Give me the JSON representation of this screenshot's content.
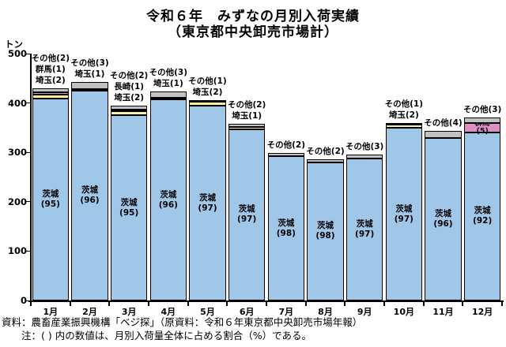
{
  "chart_data": {
    "type": "bar",
    "stacked": true,
    "title": "令和６年　みずなの月別入荷実績",
    "subtitle": "（東京都中央卸売市場計）",
    "ylabel_unit": "トン",
    "ylim": [
      0,
      500
    ],
    "yticks": [
      0,
      100,
      200,
      300,
      400,
      500
    ],
    "grid": "off",
    "legend": "none",
    "colors": {
      "茨城": "#A0C6E8",
      "埼玉": "#FFF0A0",
      "群馬": "#DD8FC6",
      "長崎": "#161C28",
      "その他": "#C2C2C2"
    },
    "categories": [
      "1月",
      "2月",
      "3月",
      "4月",
      "5月",
      "6月",
      "7月",
      "8月",
      "9月",
      "10月",
      "11月",
      "12月"
    ],
    "bars": [
      {
        "month": "1月",
        "total_tons": 430,
        "top_labels": [
          "その他(2)",
          "群馬(1)",
          "埼玉(2)"
        ],
        "segments": [
          {
            "name": "茨城",
            "pct": 95,
            "label_lines": [
              "茨城",
              "(95)"
            ]
          },
          {
            "name": "埼玉",
            "pct": 2
          },
          {
            "name": "群馬",
            "pct": 1
          },
          {
            "name": "その他",
            "pct": 2
          }
        ]
      },
      {
        "month": "2月",
        "total_tons": 442,
        "top_labels": [
          "その他(3)",
          "埼玉(1)"
        ],
        "segments": [
          {
            "name": "茨城",
            "pct": 96,
            "label_lines": [
              "茨城",
              "(96)"
            ]
          },
          {
            "name": "埼玉",
            "pct": 1
          },
          {
            "name": "その他",
            "pct": 3
          }
        ]
      },
      {
        "month": "3月",
        "total_tons": 395,
        "top_labels": [
          "その他(2)",
          "長崎(1)",
          "埼玉(2)"
        ],
        "segments": [
          {
            "name": "茨城",
            "pct": 95,
            "label_lines": [
              "茨城",
              "(95)"
            ]
          },
          {
            "name": "埼玉",
            "pct": 2
          },
          {
            "name": "長崎",
            "pct": 1
          },
          {
            "name": "その他",
            "pct": 2
          }
        ]
      },
      {
        "month": "4月",
        "total_tons": 424,
        "top_labels": [
          "その他(3)",
          "埼玉(1)"
        ],
        "segments": [
          {
            "name": "茨城",
            "pct": 96,
            "label_lines": [
              "茨城",
              "(96)"
            ]
          },
          {
            "name": "埼玉",
            "pct": 1
          },
          {
            "name": "その他",
            "pct": 3
          }
        ]
      },
      {
        "month": "5月",
        "total_tons": 406,
        "top_labels": [
          "その他(1)",
          "埼玉(2)"
        ],
        "segments": [
          {
            "name": "茨城",
            "pct": 97,
            "label_lines": [
              "茨城",
              "(97)"
            ]
          },
          {
            "name": "埼玉",
            "pct": 2
          },
          {
            "name": "その他",
            "pct": 1
          }
        ]
      },
      {
        "month": "6月",
        "total_tons": 358,
        "top_labels": [
          "その他(2)",
          "埼玉(1)"
        ],
        "segments": [
          {
            "name": "茨城",
            "pct": 97,
            "label_lines": [
              "茨城",
              "(97)"
            ]
          },
          {
            "name": "埼玉",
            "pct": 1
          },
          {
            "name": "その他",
            "pct": 2
          }
        ]
      },
      {
        "month": "7月",
        "total_tons": 298,
        "top_labels": [
          "その他(2)"
        ],
        "segments": [
          {
            "name": "茨城",
            "pct": 98,
            "label_lines": [
              "茨城",
              "(98)"
            ]
          },
          {
            "name": "その他",
            "pct": 2
          }
        ]
      },
      {
        "month": "8月",
        "total_tons": 286,
        "top_labels": [
          "その他(2)"
        ],
        "segments": [
          {
            "name": "茨城",
            "pct": 98,
            "label_lines": [
              "茨城",
              "(98)"
            ]
          },
          {
            "name": "その他",
            "pct": 2
          }
        ]
      },
      {
        "month": "9月",
        "total_tons": 296,
        "top_labels": [
          "その他(3)"
        ],
        "segments": [
          {
            "name": "茨城",
            "pct": 97,
            "label_lines": [
              "茨城",
              "(97)"
            ]
          },
          {
            "name": "その他",
            "pct": 3
          }
        ]
      },
      {
        "month": "10月",
        "total_tons": 360,
        "top_labels": [
          "その他(1)",
          "埼玉(2)"
        ],
        "segments": [
          {
            "name": "茨城",
            "pct": 97,
            "label_lines": [
              "茨城",
              "(97)"
            ]
          },
          {
            "name": "埼玉",
            "pct": 2
          },
          {
            "name": "その他",
            "pct": 1
          }
        ]
      },
      {
        "month": "11月",
        "total_tons": 343,
        "top_labels": [
          "その他(4)"
        ],
        "segments": [
          {
            "name": "茨城",
            "pct": 96,
            "label_lines": [
              "茨城",
              "(96)"
            ]
          },
          {
            "name": "その他",
            "pct": 4
          }
        ]
      },
      {
        "month": "12月",
        "total_tons": 370,
        "top_labels": [
          "その他(3)"
        ],
        "segments": [
          {
            "name": "茨城",
            "pct": 92,
            "label_lines": [
              "茨城",
              "(92)"
            ]
          },
          {
            "name": "群馬",
            "pct": 5,
            "label_lines": [
              "群馬(5)"
            ],
            "small_label": true
          },
          {
            "name": "その他",
            "pct": 3
          }
        ]
      }
    ]
  },
  "notes": {
    "source": "資料：農畜産業振興機構「ベジ探」（原資料：令和６年東京都中央卸売市場年報）",
    "note": "注：( ) 内の数値は、月別入荷量全体に占める割合（%）である。"
  }
}
